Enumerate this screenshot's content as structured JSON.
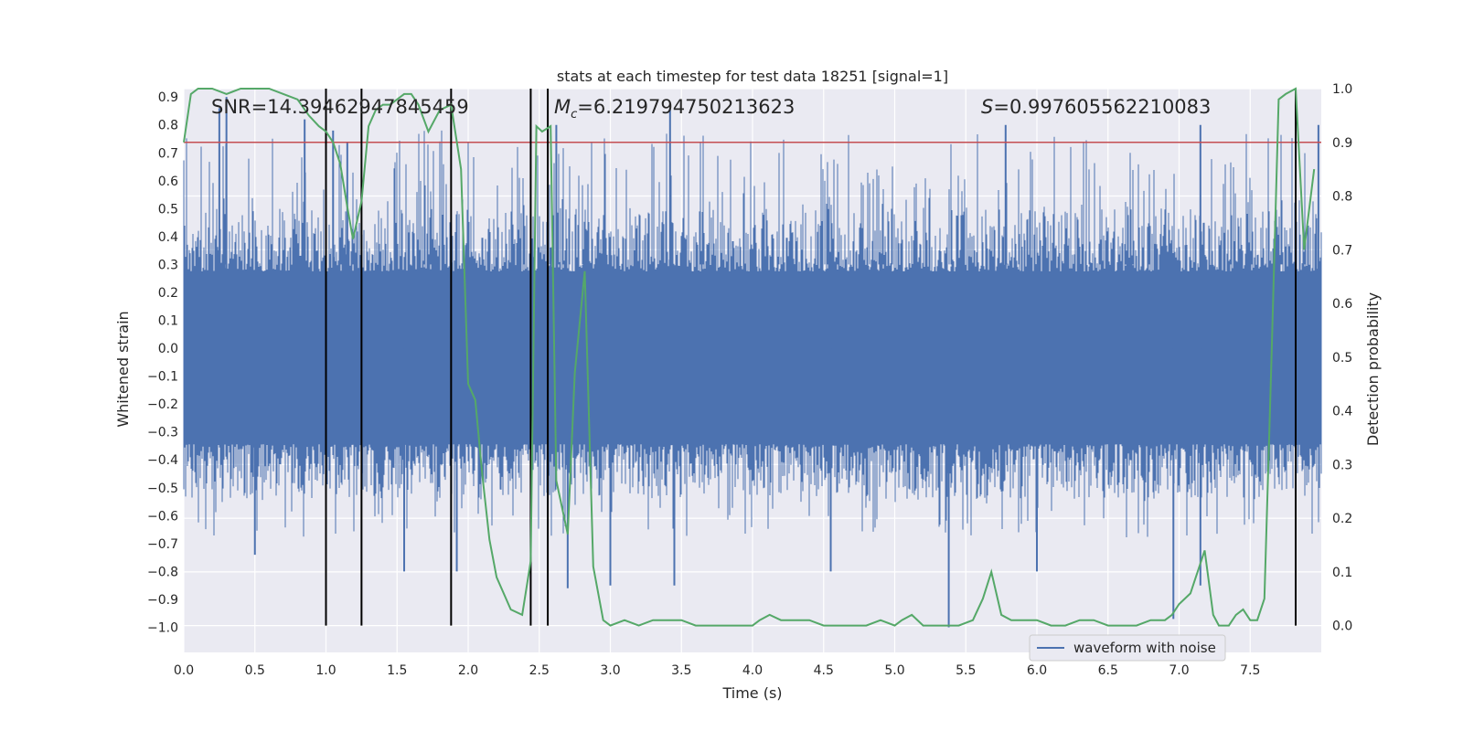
{
  "chart_data": {
    "type": "line",
    "title": "stats at each timestep for test data 18251 [signal=1]",
    "xlabel": "Time (s)",
    "ylabel": "Whitened strain",
    "ylabel_right": "Detection probability",
    "xlim": [
      0.0,
      8.0
    ],
    "ylim": [
      -1.09,
      0.93
    ],
    "ylim_right": [
      -0.05,
      1.0
    ],
    "xticks": [
      "0.0",
      "0.5",
      "1.0",
      "1.5",
      "2.0",
      "2.5",
      "3.0",
      "3.5",
      "4.0",
      "4.5",
      "5.0",
      "5.5",
      "6.0",
      "6.5",
      "7.0",
      "7.5"
    ],
    "yticks_left": [
      "0.9",
      "0.8",
      "0.7",
      "0.6",
      "0.5",
      "0.4",
      "0.3",
      "0.2",
      "0.1",
      "0.0",
      "−0.1",
      "−0.2",
      "−0.3",
      "−0.4",
      "−0.5",
      "−0.6",
      "−0.7",
      "−0.8",
      "−0.9",
      "−1.0"
    ],
    "yticks_right": [
      "1.0",
      "0.9",
      "0.8",
      "0.7",
      "0.6",
      "0.5",
      "0.4",
      "0.3",
      "0.2",
      "0.1",
      "0.0"
    ],
    "annotations": {
      "snr": "SNR=14.39462947845459",
      "mc_symbol": "M",
      "mc_sub": "c",
      "mc_value": "=6.219794750213623",
      "s_symbol": "S",
      "s_value": "=0.997605562210083"
    },
    "threshold": {
      "value": 0.9,
      "axis": "right",
      "color": "#c44e52"
    },
    "vertical_lines_x": [
      1.0,
      1.25,
      1.88,
      2.44,
      2.56,
      7.82
    ],
    "waveform": {
      "name": "waveform with noise",
      "color": "#4c72b0",
      "typical_envelope": [
        -0.43,
        0.5
      ],
      "spikes": [
        {
          "x": 0.25,
          "y": 0.86
        },
        {
          "x": 0.3,
          "y": 0.9
        },
        {
          "x": 0.85,
          "y": 0.82
        },
        {
          "x": 1.05,
          "y": 0.78
        },
        {
          "x": 1.15,
          "y": 0.74
        },
        {
          "x": 2.62,
          "y": 0.8
        },
        {
          "x": 3.42,
          "y": 0.86
        },
        {
          "x": 5.78,
          "y": 0.8
        },
        {
          "x": 7.15,
          "y": 0.8
        },
        {
          "x": 7.98,
          "y": 0.8
        },
        {
          "x": 0.5,
          "y": -0.74
        },
        {
          "x": 1.55,
          "y": -0.8
        },
        {
          "x": 1.92,
          "y": -0.8
        },
        {
          "x": 2.7,
          "y": -0.86
        },
        {
          "x": 3.0,
          "y": -0.85
        },
        {
          "x": 3.45,
          "y": -0.85
        },
        {
          "x": 4.55,
          "y": -0.8
        },
        {
          "x": 5.38,
          "y": -1.0
        },
        {
          "x": 6.0,
          "y": -0.8
        },
        {
          "x": 6.96,
          "y": -0.97
        },
        {
          "x": 7.15,
          "y": -0.85
        }
      ]
    },
    "series": [
      {
        "name": "",
        "axis": "right",
        "color": "#55a868",
        "x": [
          0.0,
          0.05,
          0.1,
          0.2,
          0.3,
          0.4,
          0.5,
          0.6,
          0.7,
          0.8,
          0.88,
          0.95,
          1.0,
          1.05,
          1.1,
          1.15,
          1.19,
          1.25,
          1.3,
          1.35,
          1.4,
          1.45,
          1.5,
          1.55,
          1.6,
          1.65,
          1.72,
          1.8,
          1.88,
          1.95,
          2.0,
          2.05,
          2.1,
          2.15,
          2.2,
          2.3,
          2.38,
          2.44,
          2.48,
          2.52,
          2.58,
          2.62,
          2.7,
          2.75,
          2.82,
          2.88,
          2.95,
          3.0,
          3.1,
          3.2,
          3.3,
          3.35,
          3.4,
          3.5,
          3.6,
          3.7,
          3.8,
          3.9,
          4.0,
          4.05,
          4.12,
          4.2,
          4.3,
          4.4,
          4.5,
          4.6,
          4.7,
          4.8,
          4.9,
          5.0,
          5.05,
          5.12,
          5.2,
          5.25,
          5.35,
          5.45,
          5.55,
          5.62,
          5.68,
          5.75,
          5.82,
          5.9,
          6.0,
          6.1,
          6.2,
          6.3,
          6.4,
          6.5,
          6.6,
          6.7,
          6.8,
          6.9,
          6.95,
          7.0,
          7.08,
          7.13,
          7.18,
          7.24,
          7.28,
          7.35,
          7.4,
          7.45,
          7.5,
          7.55,
          7.6,
          7.65,
          7.7,
          7.75,
          7.82,
          7.88,
          7.95
        ],
        "y": [
          0.9,
          0.99,
          1.0,
          1.0,
          0.99,
          1.0,
          1.0,
          1.0,
          0.99,
          0.98,
          0.95,
          0.93,
          0.92,
          0.9,
          0.86,
          0.78,
          0.72,
          0.79,
          0.93,
          0.96,
          0.97,
          0.97,
          0.98,
          0.99,
          0.99,
          0.97,
          0.92,
          0.96,
          0.97,
          0.85,
          0.45,
          0.42,
          0.28,
          0.16,
          0.09,
          0.03,
          0.02,
          0.12,
          0.93,
          0.92,
          0.93,
          0.27,
          0.17,
          0.47,
          0.66,
          0.11,
          0.01,
          0.0,
          0.01,
          0.0,
          0.01,
          0.01,
          0.01,
          0.01,
          0.0,
          0.0,
          0.0,
          0.0,
          0.0,
          0.01,
          0.02,
          0.01,
          0.01,
          0.01,
          0.0,
          0.0,
          0.0,
          0.0,
          0.01,
          0.0,
          0.01,
          0.02,
          0.0,
          0.0,
          0.0,
          0.0,
          0.01,
          0.05,
          0.1,
          0.02,
          0.01,
          0.01,
          0.01,
          0.0,
          0.0,
          0.01,
          0.01,
          0.0,
          0.0,
          0.0,
          0.01,
          0.01,
          0.02,
          0.04,
          0.06,
          0.1,
          0.14,
          0.02,
          0.0,
          0.0,
          0.02,
          0.03,
          0.01,
          0.01,
          0.05,
          0.5,
          0.98,
          0.99,
          1.0,
          0.7,
          0.85
        ]
      }
    ],
    "legend": {
      "label": "waveform with noise",
      "placement": "lower-right"
    },
    "grid": true
  }
}
